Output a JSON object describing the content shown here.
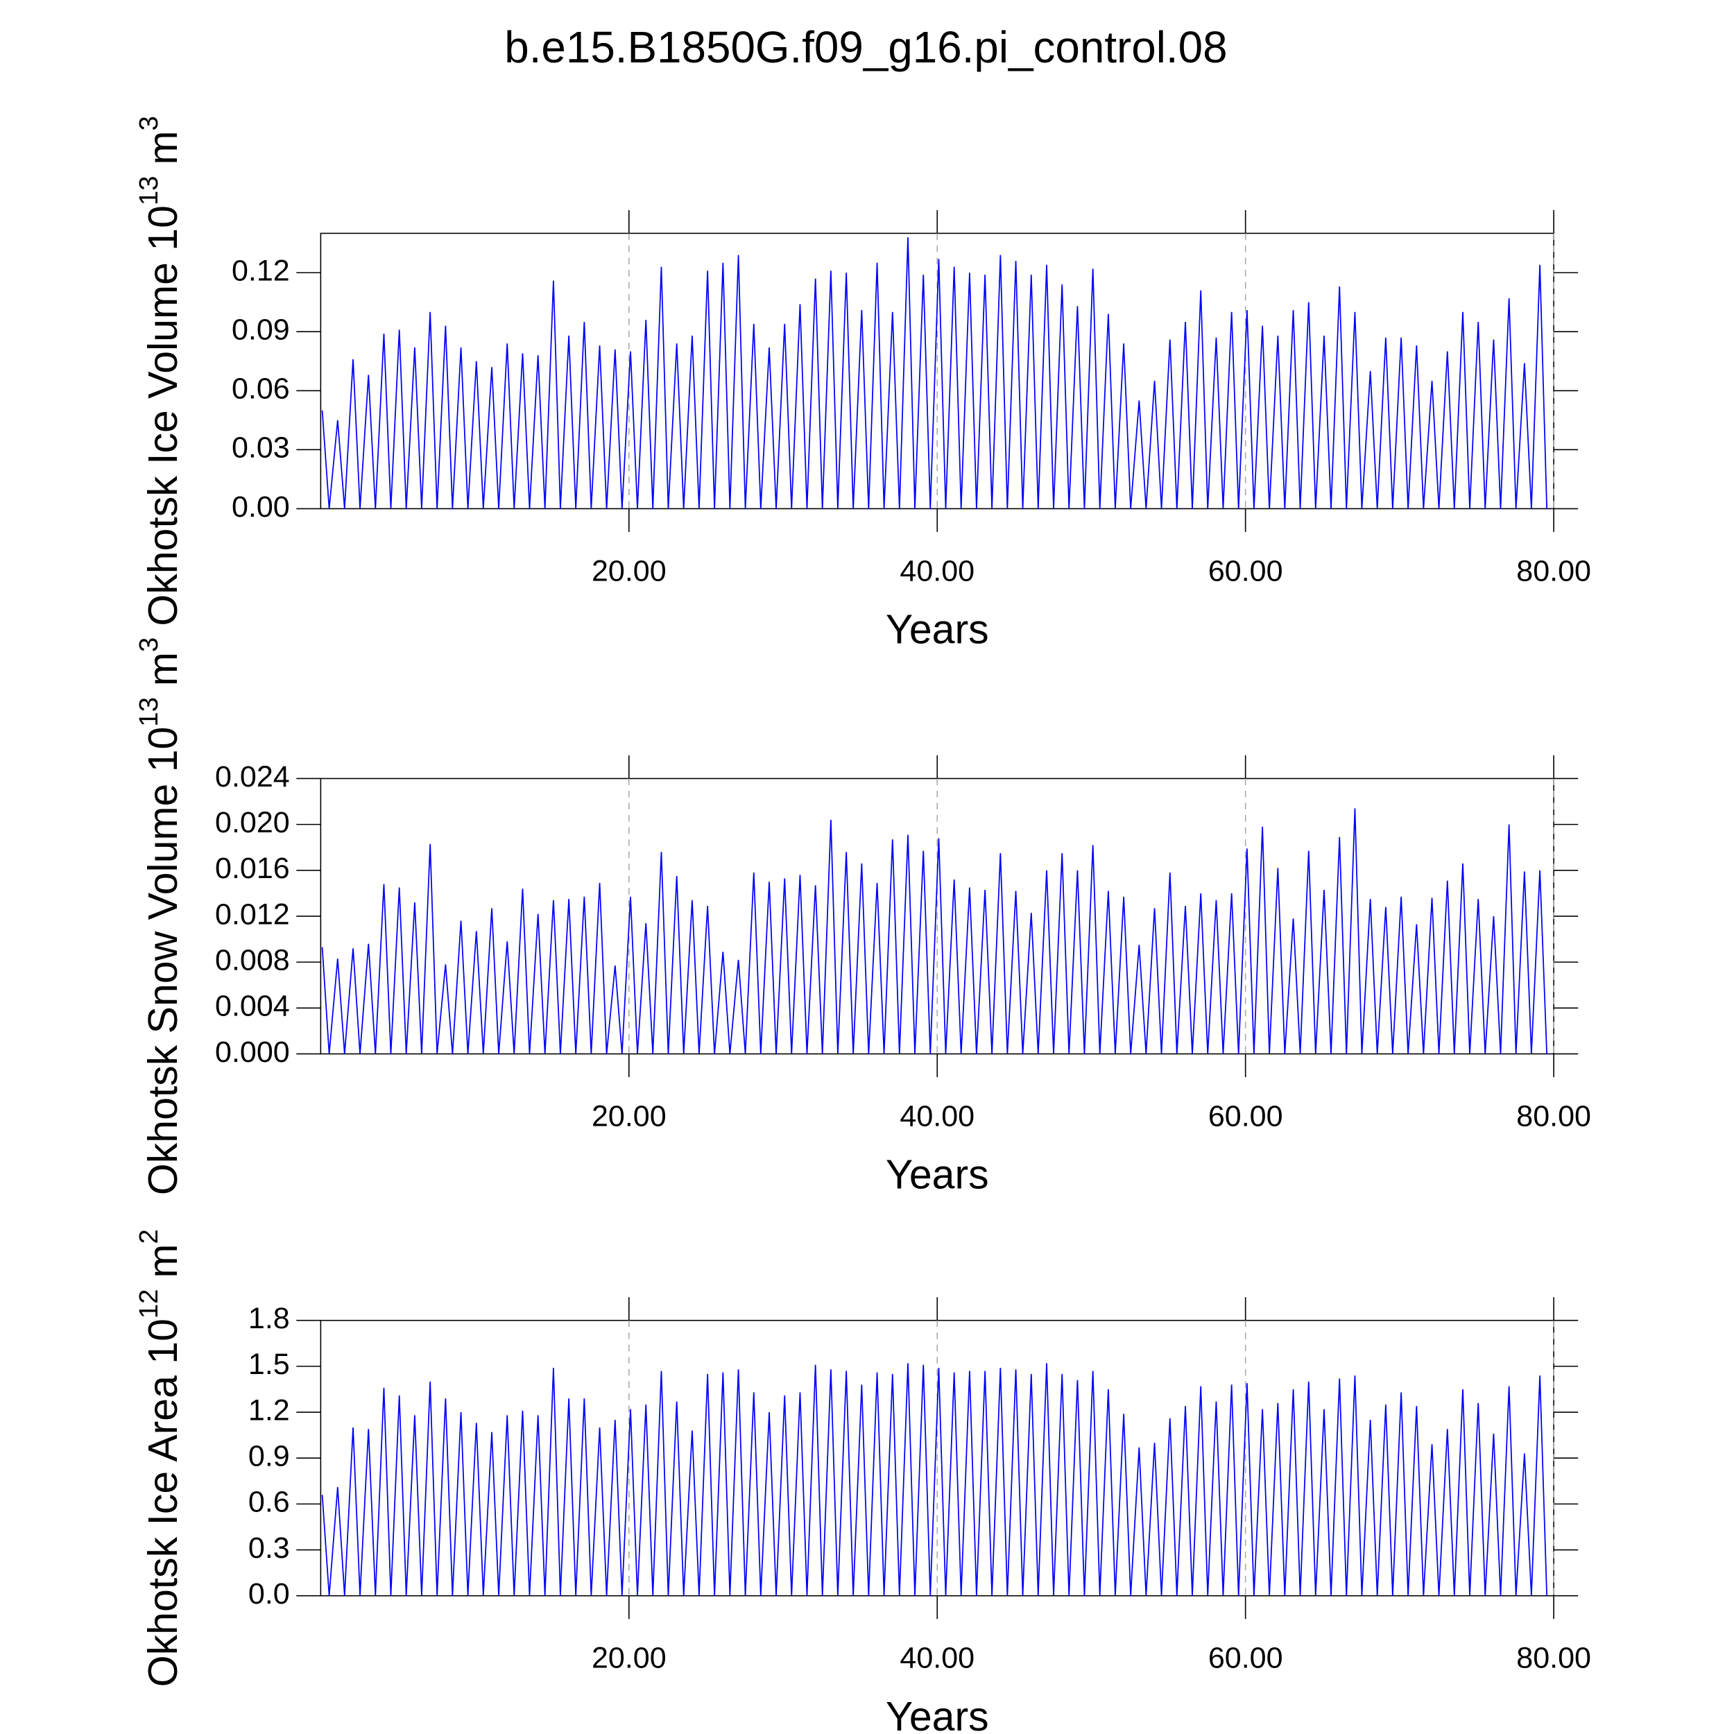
{
  "title": "b.e15.B1850G.f09_g16.pi_control.08",
  "chart_data": [
    {
      "type": "line",
      "ylabel": {
        "text": "Okhotsk Ice Volume 10",
        "exp": "13",
        "unit": "m",
        "unit_exp": "3"
      },
      "xlabel": "Years",
      "color": "#0000ff",
      "grid": true,
      "xlim": [
        0,
        80
      ],
      "xticks": [
        {
          "value": 20,
          "label": "20.00"
        },
        {
          "value": 40,
          "label": "40.00"
        },
        {
          "value": 60,
          "label": "60.00"
        },
        {
          "value": 80,
          "label": "80.00"
        }
      ],
      "ylim": [
        0,
        0.14
      ],
      "yticks": [
        {
          "value": 0,
          "label": "0.00"
        },
        0.03,
        0.06,
        0.09,
        0.12
      ],
      "x": [
        0.1,
        0.55,
        1.1,
        1.55,
        2.1,
        2.55,
        3.1,
        3.55,
        4.1,
        4.55,
        5.1,
        5.55,
        6.1,
        6.55,
        7.1,
        7.55,
        8.1,
        8.55,
        9.1,
        9.55,
        10.1,
        10.55,
        11.1,
        11.55,
        12.1,
        12.55,
        13.1,
        13.55,
        14.1,
        14.55,
        15.1,
        15.55,
        16.1,
        16.55,
        17.1,
        17.55,
        18.1,
        18.55,
        19.1,
        19.55,
        20.1,
        20.55,
        21.1,
        21.55,
        22.1,
        22.55,
        23.1,
        23.55,
        24.1,
        24.55,
        25.1,
        25.55,
        26.1,
        26.55,
        27.1,
        27.55,
        28.1,
        28.55,
        29.1,
        29.55,
        30.1,
        30.55,
        31.1,
        31.55,
        32.1,
        32.55,
        33.1,
        33.55,
        34.1,
        34.55,
        35.1,
        35.55,
        36.1,
        36.55,
        37.1,
        37.55,
        38.1,
        38.55,
        39.1,
        39.55,
        40.1,
        40.55,
        41.1,
        41.55,
        42.1,
        42.55,
        43.1,
        43.55,
        44.1,
        44.55,
        45.1,
        45.55,
        46.1,
        46.55,
        47.1,
        47.55,
        48.1,
        48.55,
        49.1,
        49.55,
        50.1,
        50.55,
        51.1,
        51.55,
        52.1,
        52.55,
        53.1,
        53.55,
        54.1,
        54.55,
        55.1,
        55.55,
        56.1,
        56.55,
        57.1,
        57.55,
        58.1,
        58.55,
        59.1,
        59.55,
        60.1,
        60.55,
        61.1,
        61.55,
        62.1,
        62.55,
        63.1,
        63.55,
        64.1,
        64.55,
        65.1,
        65.55,
        66.1,
        66.55,
        67.1,
        67.55,
        68.1,
        68.55,
        69.1,
        69.55,
        70.1,
        70.55,
        71.1,
        71.55,
        72.1,
        72.55,
        73.1,
        73.55,
        74.1,
        74.55,
        75.1,
        75.55,
        76.1,
        76.55,
        77.1,
        77.55,
        78.1,
        78.55,
        79.1,
        79.55
      ],
      "values": [
        0.05,
        0,
        0.045,
        0,
        0.076,
        0,
        0.068,
        0,
        0.089,
        0,
        0.091,
        0,
        0.082,
        0,
        0.1,
        0,
        0.093,
        0,
        0.082,
        0,
        0.075,
        0,
        0.072,
        0,
        0.084,
        0,
        0.079,
        0,
        0.078,
        0,
        0.116,
        0,
        0.088,
        0,
        0.095,
        0,
        0.083,
        0,
        0.081,
        0,
        0.08,
        0,
        0.096,
        0,
        0.123,
        0,
        0.084,
        0,
        0.088,
        0,
        0.121,
        0,
        0.125,
        0,
        0.129,
        0,
        0.094,
        0,
        0.082,
        0,
        0.094,
        0,
        0.104,
        0,
        0.117,
        0,
        0.121,
        0,
        0.12,
        0,
        0.101,
        0,
        0.125,
        0,
        0.1,
        0,
        0.138,
        0,
        0.119,
        0,
        0.127,
        0,
        0.123,
        0,
        0.12,
        0,
        0.119,
        0,
        0.129,
        0,
        0.126,
        0,
        0.119,
        0,
        0.124,
        0,
        0.114,
        0,
        0.103,
        0,
        0.122,
        0,
        0.099,
        0,
        0.084,
        0,
        0.055,
        0,
        0.065,
        0,
        0.086,
        0,
        0.095,
        0,
        0.111,
        0,
        0.087,
        0,
        0.1,
        0,
        0.101,
        0,
        0.093,
        0,
        0.088,
        0,
        0.101,
        0,
        0.105,
        0,
        0.088,
        0,
        0.113,
        0,
        0.1,
        0,
        0.07,
        0,
        0.087,
        0,
        0.087,
        0,
        0.083,
        0,
        0.065,
        0,
        0.08,
        0,
        0.1,
        0,
        0.095,
        0,
        0.086,
        0,
        0.107,
        0,
        0.074,
        0,
        0.124,
        0
      ]
    },
    {
      "type": "line",
      "ylabel": {
        "text": "Okhotsk Snow Volume 10",
        "exp": "13",
        "unit": "m",
        "unit_exp": "3"
      },
      "xlabel": "Years",
      "color": "#0000ff",
      "grid": true,
      "xlim": [
        0,
        80
      ],
      "xticks": [
        {
          "value": 20,
          "label": "20.00"
        },
        {
          "value": 40,
          "label": "40.00"
        },
        {
          "value": 60,
          "label": "60.00"
        },
        {
          "value": 80,
          "label": "80.00"
        }
      ],
      "ylim": [
        0,
        0.024
      ],
      "yticks": [
        {
          "value": 0,
          "label": "0.000"
        },
        0.004,
        0.008,
        0.012,
        0.016,
        {
          "value": 0.02,
          "label": "0.020"
        },
        0.024
      ],
      "x": [
        0.1,
        0.55,
        1.1,
        1.55,
        2.1,
        2.55,
        3.1,
        3.55,
        4.1,
        4.55,
        5.1,
        5.55,
        6.1,
        6.55,
        7.1,
        7.55,
        8.1,
        8.55,
        9.1,
        9.55,
        10.1,
        10.55,
        11.1,
        11.55,
        12.1,
        12.55,
        13.1,
        13.55,
        14.1,
        14.55,
        15.1,
        15.55,
        16.1,
        16.55,
        17.1,
        17.55,
        18.1,
        18.55,
        19.1,
        19.55,
        20.1,
        20.55,
        21.1,
        21.55,
        22.1,
        22.55,
        23.1,
        23.55,
        24.1,
        24.55,
        25.1,
        25.55,
        26.1,
        26.55,
        27.1,
        27.55,
        28.1,
        28.55,
        29.1,
        29.55,
        30.1,
        30.55,
        31.1,
        31.55,
        32.1,
        32.55,
        33.1,
        33.55,
        34.1,
        34.55,
        35.1,
        35.55,
        36.1,
        36.55,
        37.1,
        37.55,
        38.1,
        38.55,
        39.1,
        39.55,
        40.1,
        40.55,
        41.1,
        41.55,
        42.1,
        42.55,
        43.1,
        43.55,
        44.1,
        44.55,
        45.1,
        45.55,
        46.1,
        46.55,
        47.1,
        47.55,
        48.1,
        48.55,
        49.1,
        49.55,
        50.1,
        50.55,
        51.1,
        51.55,
        52.1,
        52.55,
        53.1,
        53.55,
        54.1,
        54.55,
        55.1,
        55.55,
        56.1,
        56.55,
        57.1,
        57.55,
        58.1,
        58.55,
        59.1,
        59.55,
        60.1,
        60.55,
        61.1,
        61.55,
        62.1,
        62.55,
        63.1,
        63.55,
        64.1,
        64.55,
        65.1,
        65.55,
        66.1,
        66.55,
        67.1,
        67.55,
        68.1,
        68.55,
        69.1,
        69.55,
        70.1,
        70.55,
        71.1,
        71.55,
        72.1,
        72.55,
        73.1,
        73.55,
        74.1,
        74.55,
        75.1,
        75.55,
        76.1,
        76.55,
        77.1,
        77.55,
        78.1,
        78.55,
        79.1,
        79.55
      ],
      "values": [
        0.0093,
        0,
        0.0083,
        0,
        0.0092,
        0,
        0.0096,
        0,
        0.0148,
        0,
        0.0145,
        0,
        0.0132,
        0,
        0.0183,
        0,
        0.0078,
        0,
        0.0116,
        0,
        0.0107,
        0,
        0.0127,
        0,
        0.0098,
        0,
        0.0144,
        0,
        0.0122,
        0,
        0.0134,
        0,
        0.0135,
        0,
        0.0137,
        0,
        0.0149,
        0,
        0.0077,
        0,
        0.0137,
        0,
        0.0114,
        0,
        0.0176,
        0,
        0.0155,
        0,
        0.0134,
        0,
        0.0129,
        0,
        0.0089,
        0,
        0.0082,
        0,
        0.0158,
        0,
        0.015,
        0,
        0.0153,
        0,
        0.0156,
        0,
        0.0147,
        0,
        0.0204,
        0,
        0.0176,
        0,
        0.0166,
        0,
        0.0149,
        0,
        0.0187,
        0,
        0.0191,
        0,
        0.0177,
        0,
        0.0188,
        0,
        0.0152,
        0,
        0.0145,
        0,
        0.0143,
        0,
        0.0175,
        0,
        0.0142,
        0,
        0.0123,
        0,
        0.016,
        0,
        0.0175,
        0,
        0.016,
        0,
        0.0182,
        0,
        0.0142,
        0,
        0.0137,
        0,
        0.0095,
        0,
        0.0127,
        0,
        0.0158,
        0,
        0.0129,
        0,
        0.014,
        0,
        0.0134,
        0,
        0.014,
        0,
        0.0179,
        0,
        0.0198,
        0,
        0.0162,
        0,
        0.0118,
        0,
        0.0177,
        0,
        0.0143,
        0,
        0.0189,
        0,
        0.0214,
        0,
        0.0135,
        0,
        0.0128,
        0,
        0.0137,
        0,
        0.0113,
        0,
        0.0136,
        0,
        0.0151,
        0,
        0.0166,
        0,
        0.0135,
        0,
        0.012,
        0,
        0.02,
        0,
        0.0159,
        0,
        0.016,
        0
      ]
    },
    {
      "type": "line",
      "ylabel": {
        "text": "Okhotsk Ice Area 10",
        "exp": "12",
        "unit": "m",
        "unit_exp": "2"
      },
      "xlabel": "Years",
      "color": "#0000ff",
      "grid": true,
      "xlim": [
        0,
        80
      ],
      "xticks": [
        {
          "value": 20,
          "label": "20.00"
        },
        {
          "value": 40,
          "label": "40.00"
        },
        {
          "value": 60,
          "label": "60.00"
        },
        {
          "value": 80,
          "label": "80.00"
        }
      ],
      "ylim": [
        0,
        1.8
      ],
      "yticks": [
        {
          "value": 0,
          "label": "0.0"
        },
        0.3,
        0.6,
        0.9,
        1.2,
        1.5,
        1.8
      ],
      "x": [
        0.1,
        0.55,
        1.1,
        1.55,
        2.1,
        2.55,
        3.1,
        3.55,
        4.1,
        4.55,
        5.1,
        5.55,
        6.1,
        6.55,
        7.1,
        7.55,
        8.1,
        8.55,
        9.1,
        9.55,
        10.1,
        10.55,
        11.1,
        11.55,
        12.1,
        12.55,
        13.1,
        13.55,
        14.1,
        14.55,
        15.1,
        15.55,
        16.1,
        16.55,
        17.1,
        17.55,
        18.1,
        18.55,
        19.1,
        19.55,
        20.1,
        20.55,
        21.1,
        21.55,
        22.1,
        22.55,
        23.1,
        23.55,
        24.1,
        24.55,
        25.1,
        25.55,
        26.1,
        26.55,
        27.1,
        27.55,
        28.1,
        28.55,
        29.1,
        29.55,
        30.1,
        30.55,
        31.1,
        31.55,
        32.1,
        32.55,
        33.1,
        33.55,
        34.1,
        34.55,
        35.1,
        35.55,
        36.1,
        36.55,
        37.1,
        37.55,
        38.1,
        38.55,
        39.1,
        39.55,
        40.1,
        40.55,
        41.1,
        41.55,
        42.1,
        42.55,
        43.1,
        43.55,
        44.1,
        44.55,
        45.1,
        45.55,
        46.1,
        46.55,
        47.1,
        47.55,
        48.1,
        48.55,
        49.1,
        49.55,
        50.1,
        50.55,
        51.1,
        51.55,
        52.1,
        52.55,
        53.1,
        53.55,
        54.1,
        54.55,
        55.1,
        55.55,
        56.1,
        56.55,
        57.1,
        57.55,
        58.1,
        58.55,
        59.1,
        59.55,
        60.1,
        60.55,
        61.1,
        61.55,
        62.1,
        62.55,
        63.1,
        63.55,
        64.1,
        64.55,
        65.1,
        65.55,
        66.1,
        66.55,
        67.1,
        67.55,
        68.1,
        68.55,
        69.1,
        69.55,
        70.1,
        70.55,
        71.1,
        71.55,
        72.1,
        72.55,
        73.1,
        73.55,
        74.1,
        74.55,
        75.1,
        75.55,
        76.1,
        76.55,
        77.1,
        77.55,
        78.1,
        78.55,
        79.1,
        79.55
      ],
      "values": [
        0.66,
        0,
        0.71,
        0,
        1.1,
        0,
        1.09,
        0,
        1.36,
        0,
        1.31,
        0,
        1.18,
        0,
        1.4,
        0,
        1.29,
        0,
        1.2,
        0,
        1.13,
        0,
        1.07,
        0,
        1.18,
        0,
        1.21,
        0,
        1.18,
        0,
        1.49,
        0,
        1.29,
        0,
        1.29,
        0,
        1.1,
        0,
        1.15,
        0,
        1.22,
        0,
        1.25,
        0,
        1.47,
        0,
        1.27,
        0,
        1.08,
        0,
        1.45,
        0,
        1.46,
        0,
        1.48,
        0,
        1.33,
        0,
        1.2,
        0,
        1.31,
        0,
        1.33,
        0,
        1.51,
        0,
        1.48,
        0,
        1.47,
        0,
        1.38,
        0,
        1.46,
        0,
        1.45,
        0,
        1.52,
        0,
        1.51,
        0,
        1.49,
        0,
        1.46,
        0,
        1.47,
        0,
        1.47,
        0,
        1.49,
        0,
        1.48,
        0,
        1.45,
        0,
        1.52,
        0,
        1.45,
        0,
        1.41,
        0,
        1.47,
        0,
        1.35,
        0,
        1.19,
        0,
        0.97,
        0,
        1.0,
        0,
        1.16,
        0,
        1.24,
        0,
        1.37,
        0,
        1.27,
        0,
        1.38,
        0,
        1.39,
        0,
        1.22,
        0,
        1.26,
        0,
        1.35,
        0,
        1.4,
        0,
        1.22,
        0,
        1.42,
        0,
        1.44,
        0,
        1.15,
        0,
        1.25,
        0,
        1.33,
        0,
        1.24,
        0,
        0.99,
        0,
        1.09,
        0,
        1.35,
        0,
        1.26,
        0,
        1.06,
        0,
        1.37,
        0,
        0.93,
        0,
        1.44,
        0
      ]
    }
  ]
}
